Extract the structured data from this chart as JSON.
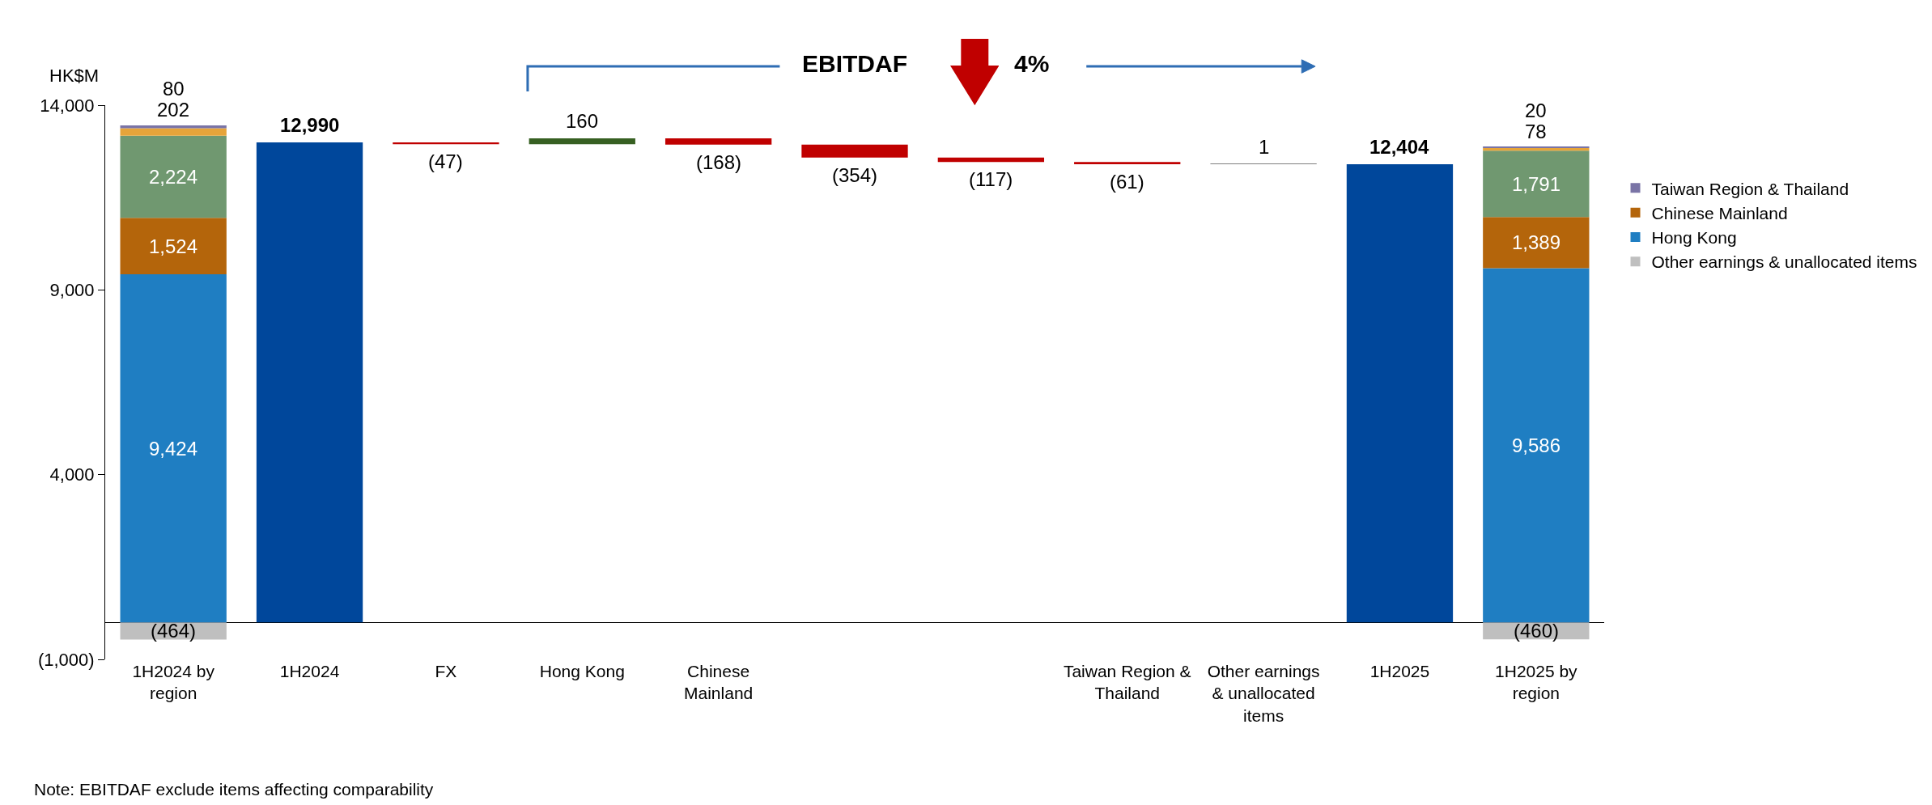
{
  "chart_data": {
    "type": "bar",
    "ylabel": "HK$M",
    "categories": [
      "1H2024 by region",
      "1H2024",
      "FX",
      "Hong Kong",
      "Chinese Mainland",
      null,
      null,
      "Taiwan Region & Thailand",
      "Other earnings & unallocated items",
      "1H2025",
      "1H2025 by region"
    ],
    "stacked": true,
    "legend": "right",
    "grid": false,
    "ylim": [
      -1000,
      14000
    ],
    "yticks": [
      {
        "value": -1000,
        "label": "(1,000)"
      },
      {
        "value": 4000,
        "label": "4,000"
      },
      {
        "value": 9000,
        "label": "9,000"
      },
      {
        "value": 14000,
        "label": "14,000"
      }
    ],
    "series": [
      {
        "name": "Other earnings & unallocated items",
        "color": "#bfbfbf",
        "values": [
          -464,
          null,
          null,
          null,
          null,
          null,
          null,
          null,
          null,
          null,
          -460
        ],
        "value_labels": [
          "(464)",
          null,
          null,
          null,
          null,
          null,
          null,
          null,
          null,
          null,
          "(460)"
        ]
      },
      {
        "name": "Hong Kong",
        "color": "#1f7ec2",
        "values": [
          9424,
          null,
          null,
          null,
          null,
          null,
          null,
          null,
          null,
          null,
          9586
        ],
        "value_labels": [
          "9,424",
          null,
          null,
          null,
          null,
          null,
          null,
          null,
          null,
          null,
          "9,586"
        ]
      },
      {
        "name": "Chinese Mainland",
        "color": "#b4650b",
        "values": [
          1524,
          null,
          null,
          null,
          null,
          null,
          null,
          null,
          null,
          null,
          1389
        ],
        "value_labels": [
          "1,524",
          null,
          null,
          null,
          null,
          null,
          null,
          null,
          null,
          null,
          "1,389"
        ]
      },
      {
        "color": "#709870",
        "values": [
          2224,
          null,
          null,
          null,
          null,
          null,
          null,
          null,
          null,
          null,
          1791
        ],
        "value_labels": [
          "2,224",
          null,
          null,
          null,
          null,
          null,
          null,
          null,
          null,
          null,
          "1,791"
        ]
      },
      {
        "color": "#e6a43a",
        "values": [
          202,
          null,
          null,
          null,
          null,
          null,
          null,
          null,
          null,
          null,
          78
        ],
        "value_labels": [
          "202",
          null,
          null,
          null,
          null,
          null,
          null,
          null,
          null,
          null,
          "78"
        ]
      },
      {
        "name": "Taiwan Region & Thailand",
        "color": "#7a74a6",
        "values": [
          80,
          null,
          null,
          null,
          null,
          null,
          null,
          null,
          null,
          null,
          20
        ],
        "value_labels": [
          "80",
          null,
          null,
          null,
          null,
          null,
          null,
          null,
          null,
          null,
          "20"
        ]
      },
      {
        "colors": [
          "#00479b",
          "#00479b",
          "#c00000",
          "#376022",
          "#c00000",
          "#c00000",
          "#c00000",
          "#c00000",
          "#7f7f7f",
          "#00479b",
          "#00479b"
        ],
        "values": [
          null,
          12990,
          -47,
          160,
          -168,
          -354,
          -117,
          -61,
          1,
          12404,
          null
        ],
        "base": [
          null,
          0,
          12990,
          12943,
          13103,
          12935,
          12581,
          12464,
          12403,
          0,
          null
        ],
        "value_labels": [
          null,
          "12,990",
          "(47)",
          "160",
          "(168)",
          "(354)",
          "(117)",
          "(61)",
          "1",
          "12,404",
          null
        ]
      }
    ],
    "annotations": [
      "EBITDAF",
      "4%",
      "Note: EBITDAF exclude items affecting comparability"
    ]
  }
}
